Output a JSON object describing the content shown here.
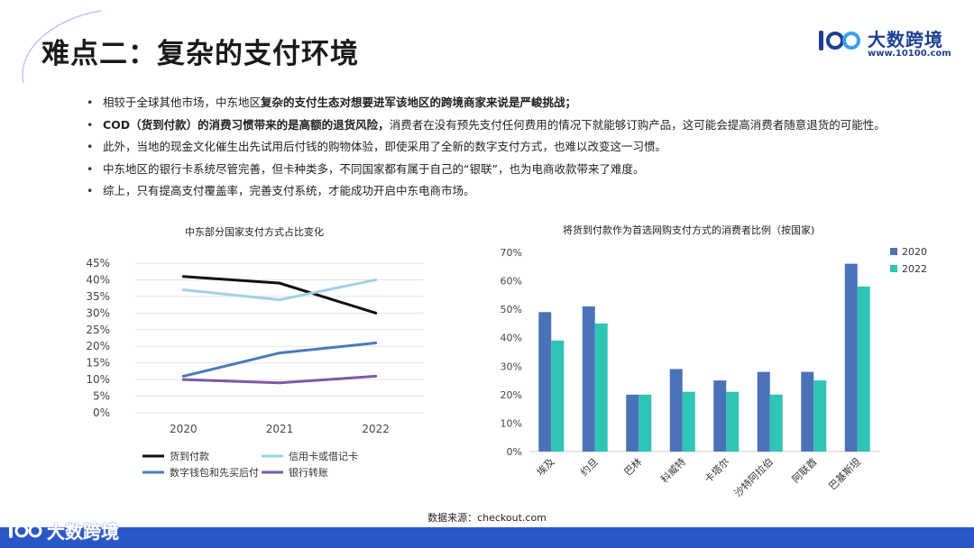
{
  "title": "难点二：复杂的支付环境",
  "brand": {
    "name": "大数跨境",
    "url": "www.10100.com",
    "mark": "100"
  },
  "bullets": [
    {
      "pre": "相较于全球其他市场，中东地区",
      "bold": "复杂的支付生态对想要进军该地区的跨境商家来说是严峻挑战；",
      "post": ""
    },
    {
      "pre": "",
      "bold": "COD（货到付款）的消费习惯带来的是高额的退货风险，",
      "post": "消费者在没有预先支付任何费用的情况下就能够订购产品，这可能会提高消费者随意退货的可能性。"
    },
    {
      "pre": "此外，当地的现金文化催生出先试用后付钱的购物体验，即使采用了全新的数字支付方式，也难以改变这一习惯。",
      "bold": "",
      "post": ""
    },
    {
      "pre": "中东地区的银行卡系统尽管完善，但卡种类多，不同国家都有属于自己的“银联”，也为电商收款带来了难度。",
      "bold": "",
      "post": ""
    },
    {
      "pre": "综上，只有提高支付覆盖率，完善支付系统，才能成功开启中东电商市场。",
      "bold": "",
      "post": ""
    }
  ],
  "chart_data": [
    {
      "type": "line",
      "title": "中东部分国家支付方式占比变化",
      "categories": [
        "2020",
        "2021",
        "2022"
      ],
      "yticks": [
        "0%",
        "5%",
        "10%",
        "15%",
        "20%",
        "25%",
        "30%",
        "35%",
        "40%",
        "45%"
      ],
      "ylim": [
        0,
        45
      ],
      "legend_position": "bottom",
      "series": [
        {
          "name": "货到付款",
          "values": [
            41,
            39,
            30
          ],
          "color": "#111111"
        },
        {
          "name": "信用卡或借记卡",
          "values": [
            37,
            34,
            40
          ],
          "color": "#9fd0e8"
        },
        {
          "name": "数字钱包和先买后付",
          "values": [
            11,
            18,
            21
          ],
          "color": "#4a7ab8"
        },
        {
          "name": "银行转账",
          "values": [
            10,
            9,
            11
          ],
          "color": "#7b5aa6"
        }
      ]
    },
    {
      "type": "bar",
      "title": "将货到付款作为首选网购支付方式的消费者比例（按国家)",
      "categories": [
        "埃及",
        "约旦",
        "巴林",
        "科威特",
        "卡塔尔",
        "沙特阿拉伯",
        "阿联酋",
        "巴基斯坦"
      ],
      "yticks": [
        "0%",
        "10%",
        "20%",
        "30%",
        "40%",
        "50%",
        "60%",
        "70%"
      ],
      "ylim": [
        0,
        70
      ],
      "legend_position": "top-right",
      "series": [
        {
          "name": "2020",
          "values": [
            49,
            51,
            20,
            29,
            25,
            28,
            28,
            66
          ],
          "color": "#4a72b8"
        },
        {
          "name": "2022",
          "values": [
            39,
            45,
            20,
            21,
            21,
            20,
            25,
            58
          ],
          "color": "#2ec4b6"
        }
      ]
    }
  ],
  "source": "数据来源：checkout.com",
  "watermark": "大数跨境"
}
